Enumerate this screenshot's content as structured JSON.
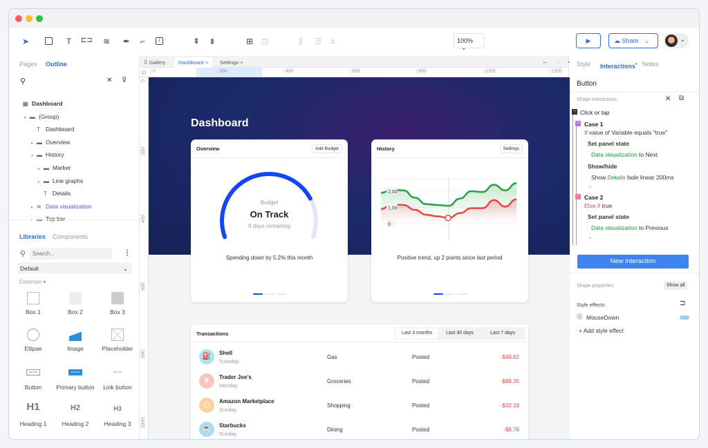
{
  "toolbar": {
    "zoom": "100%",
    "share": "Share"
  },
  "left_panel": {
    "tabs": [
      "Pages",
      "Outline"
    ],
    "outline": [
      {
        "label": "Dashboard",
        "icon": "page-icon"
      },
      {
        "label": "(Group)",
        "icon": "folder-icon"
      },
      {
        "label": "Dashboard",
        "icon": "text-icon"
      },
      {
        "label": "Overview",
        "icon": "folder-icon"
      },
      {
        "label": "History",
        "icon": "folder-icon"
      },
      {
        "label": "Marker",
        "icon": "folder-icon"
      },
      {
        "label": "Line graphs",
        "icon": "folder-icon"
      },
      {
        "label": "Details",
        "icon": "text-icon"
      },
      {
        "label": "Data visualization",
        "icon": "layers-icon"
      },
      {
        "label": "Top bar",
        "icon": "folder-icon"
      }
    ],
    "lib_tabs": [
      "Libraries",
      "Components"
    ],
    "search_placeholder": "Search...",
    "library": "Default",
    "section": "Common",
    "items": [
      "Box 1",
      "Box 2",
      "Box 3",
      "Ellipse",
      "Image",
      "Placeholder",
      "Button",
      "Primary button",
      "Link button",
      "Heading 1",
      "Heading 2",
      "Heading 3"
    ],
    "glyph_button": "BUTTON",
    "h1": "H1",
    "h2": "H2",
    "h3": "H3"
  },
  "canvas": {
    "tabs": [
      "Gallery",
      "Dashboard",
      "Settings"
    ],
    "ruler_x": [
      "0",
      "200",
      "400",
      "600",
      "800",
      "1000",
      "1200"
    ],
    "ruler_y": [
      "0",
      "200",
      "400",
      "600",
      "800",
      "1000"
    ]
  },
  "dashboard": {
    "title": "Dashboard",
    "overview": {
      "title": "Overview",
      "button": "Add Budget",
      "label": "Budget",
      "status": "On Track",
      "sub": "6 days remaining",
      "caption": "Spending down by 5.2% this month",
      "progress": 0.78
    },
    "history": {
      "title": "History",
      "button": "Settings",
      "caption": "Positive trend, up 2 points since last period",
      "ylabels": [
        "2,00",
        "1,00",
        "0"
      ],
      "green": [
        1.9,
        2.1,
        2.05,
        1.6,
        1.2,
        1.15,
        1.1,
        1.55,
        2.0,
        1.95,
        2.4,
        2.05,
        2.5
      ],
      "red": [
        0.9,
        1.2,
        1.15,
        0.85,
        0.55,
        0.45,
        0.35,
        0.65,
        0.95,
        0.95,
        1.45,
        1.05,
        1.5
      ]
    },
    "transactions": {
      "title": "Transactions",
      "filters": [
        "Last 3 months",
        "Last 30 days",
        "Last 7 days"
      ],
      "rows": [
        {
          "name": "Shell",
          "day": "Tuesday",
          "category": "Gas",
          "status": "Posted",
          "amount": "-$48.62",
          "color": "#a8e6f7",
          "icon": "⛽"
        },
        {
          "name": "Trader Joe’s",
          "day": "Monday",
          "category": "Groceries",
          "status": "Posted",
          "amount": "-$86.35",
          "color": "#f9c4c4",
          "icon": "❦"
        },
        {
          "name": "Amazon Marketplace",
          "day": "Sunday",
          "category": "Shopping",
          "status": "Posted",
          "amount": "-$32.19",
          "color": "#fcd29f",
          "icon": "◫"
        },
        {
          "name": "Starbucks",
          "day": "Sunday",
          "category": "Dining",
          "status": "Posted",
          "amount": "-$6.76",
          "color": "#a8dcf7",
          "icon": "☕"
        }
      ]
    }
  },
  "right_panel": {
    "tabs": [
      "Style",
      "Interactions",
      "Notes"
    ],
    "element": "Button",
    "shape_interactions": "Shape interactions",
    "event": "Click or tap",
    "case1": {
      "title": "Case 1",
      "cond_kw": "If",
      "cond": "value of Variable equals \"true\"",
      "a1": "Set panel state",
      "a1_target": "Data visualization",
      "a1_rest": "to Next",
      "a2": "Show/hide",
      "a2_pre": "Show",
      "a2_target": "Details",
      "a2_rest": "fade linear 200ms"
    },
    "case2": {
      "title": "Case 2",
      "cond_kw": "Else if",
      "cond": "true",
      "a1": "Set panel state",
      "a1_target": "Data visualization",
      "a1_rest": "to Previous"
    },
    "plus": "+",
    "new_interaction": "New interaction",
    "shape_properties": "Shape properties",
    "show_all": "Show all",
    "style_effects": "Style effects",
    "mousedown": "MouseDown",
    "add_effect": "+ Add style effect"
  }
}
